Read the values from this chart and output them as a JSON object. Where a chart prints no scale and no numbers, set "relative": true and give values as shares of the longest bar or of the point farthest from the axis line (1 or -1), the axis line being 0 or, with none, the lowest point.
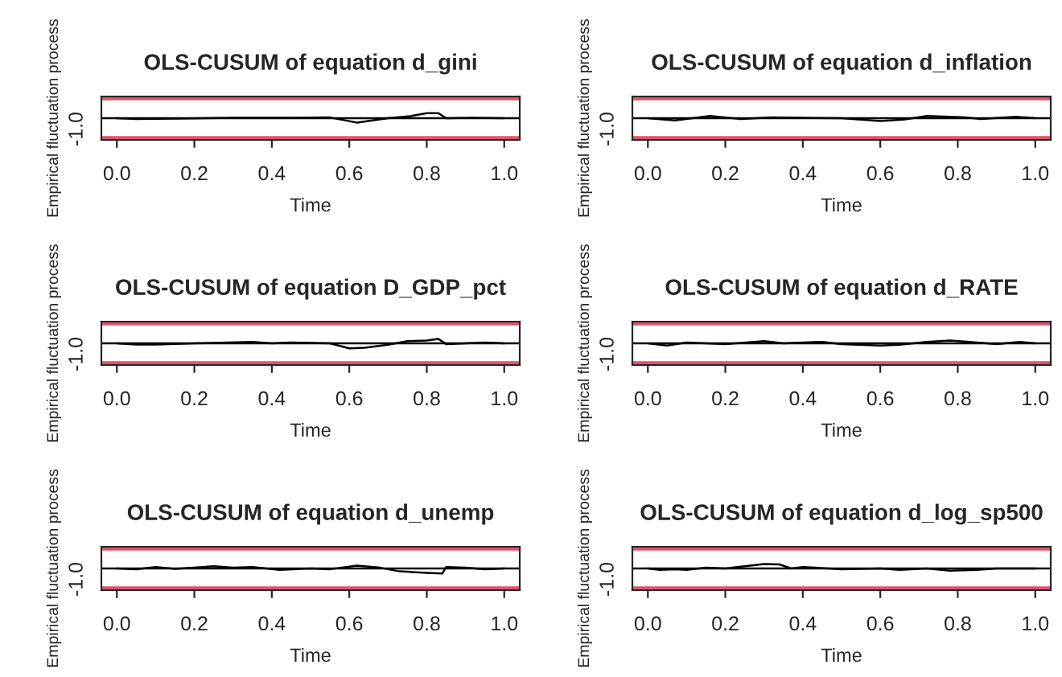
{
  "chart_data": [
    {
      "type": "line",
      "title": "OLS-CUSUM of equation d_gini",
      "xlabel": "Time",
      "ylabel": "Empirical fluctuation process",
      "relative": true,
      "annotations": [
        "-1.0"
      ],
      "xlim": [
        -0.04,
        1.04
      ],
      "xticks": [
        {
          "value": 0,
          "label": "0.0"
        },
        {
          "value": 0.2,
          "label": "0.2"
        },
        {
          "value": 0.4,
          "label": "0.4"
        },
        {
          "value": 0.6,
          "label": "0.6"
        },
        {
          "value": 0.8,
          "label": "0.8"
        },
        {
          "value": 1,
          "label": "1.0"
        }
      ],
      "x": [
        0,
        0.05,
        0.15,
        0.3,
        0.45,
        0.55,
        0.6,
        0.62,
        0.66,
        0.7,
        0.76,
        0.8,
        0.83,
        0.85,
        0.92,
        1.0
      ],
      "series": [
        {
          "color": "#000000",
          "values": [
            0,
            -0.14,
            -0.09,
            0.06,
            0.09,
            0.14,
            -0.57,
            -0.86,
            -0.43,
            0,
            0.43,
            1,
            1,
            0,
            0.06,
            0
          ]
        }
      ],
      "ref_lines": [
        {
          "axis": "y",
          "value": 3.88,
          "color": "#df536b"
        },
        {
          "axis": "y",
          "value": -3.88,
          "color": "#df536b"
        },
        {
          "axis": "y",
          "value": 0,
          "color": "#000000"
        }
      ]
    },
    {
      "type": "line",
      "title": "OLS-CUSUM of equation d_inflation",
      "xlabel": "Time",
      "ylabel": "Empirical fluctuation process",
      "relative": true,
      "annotations": [
        "-1.0"
      ],
      "xlim": [
        -0.04,
        1.04
      ],
      "xticks": [
        {
          "value": 0,
          "label": "0.0"
        },
        {
          "value": 0.2,
          "label": "0.2"
        },
        {
          "value": 0.4,
          "label": "0.4"
        },
        {
          "value": 0.6,
          "label": "0.6"
        },
        {
          "value": 0.8,
          "label": "0.8"
        },
        {
          "value": 1,
          "label": "1.0"
        }
      ],
      "x": [
        0,
        0.07,
        0.16,
        0.24,
        0.32,
        0.5,
        0.6,
        0.66,
        0.72,
        0.78,
        0.82,
        0.86,
        0.95,
        1.0
      ],
      "series": [
        {
          "color": "#000000",
          "values": [
            0,
            -0.75,
            0.75,
            -0.25,
            0.25,
            0,
            -1,
            -0.5,
            0.75,
            0.5,
            0.25,
            -0.25,
            0.5,
            0
          ]
        }
      ],
      "ref_lines": [
        {
          "axis": "y",
          "value": 6.79,
          "color": "#df536b"
        },
        {
          "axis": "y",
          "value": -6.79,
          "color": "#df536b"
        },
        {
          "axis": "y",
          "value": 0,
          "color": "#000000"
        }
      ]
    },
    {
      "type": "line",
      "title": "OLS-CUSUM of equation D_GDP_pct",
      "xlabel": "Time",
      "ylabel": "Empirical fluctuation process",
      "relative": true,
      "annotations": [
        "-1.0"
      ],
      "xlim": [
        -0.04,
        1.04
      ],
      "xticks": [
        {
          "value": 0,
          "label": "0.0"
        },
        {
          "value": 0.2,
          "label": "0.2"
        },
        {
          "value": 0.4,
          "label": "0.4"
        },
        {
          "value": 0.6,
          "label": "0.6"
        },
        {
          "value": 0.8,
          "label": "0.8"
        },
        {
          "value": 1,
          "label": "1.0"
        }
      ],
      "x": [
        0,
        0.05,
        0.1,
        0.2,
        0.35,
        0.4,
        0.45,
        0.55,
        0.6,
        0.64,
        0.7,
        0.75,
        0.8,
        0.83,
        0.85,
        0.95,
        1.0
      ],
      "series": [
        {
          "color": "#000000",
          "values": [
            0,
            -0.23,
            -0.23,
            0,
            0.29,
            0,
            0.14,
            0,
            -1,
            -0.86,
            -0.29,
            0.43,
            0.57,
            0.86,
            -0.14,
            0.14,
            0
          ]
        }
      ],
      "ref_lines": [
        {
          "axis": "y",
          "value": 3.88,
          "color": "#df536b"
        },
        {
          "axis": "y",
          "value": -3.88,
          "color": "#df536b"
        },
        {
          "axis": "y",
          "value": 0,
          "color": "#000000"
        }
      ]
    },
    {
      "type": "line",
      "title": "OLS-CUSUM of equation d_RATE",
      "xlabel": "Time",
      "ylabel": "Empirical fluctuation process",
      "relative": true,
      "annotations": [
        "-1.0"
      ],
      "xlim": [
        -0.04,
        1.04
      ],
      "xticks": [
        {
          "value": 0,
          "label": "0.0"
        },
        {
          "value": 0.2,
          "label": "0.2"
        },
        {
          "value": 0.4,
          "label": "0.4"
        },
        {
          "value": 0.6,
          "label": "0.6"
        },
        {
          "value": 0.8,
          "label": "0.8"
        },
        {
          "value": 1,
          "label": "1.0"
        }
      ],
      "x": [
        0,
        0.05,
        0.1,
        0.2,
        0.3,
        0.35,
        0.45,
        0.5,
        0.6,
        0.65,
        0.72,
        0.78,
        0.83,
        0.9,
        0.96,
        1.0
      ],
      "series": [
        {
          "color": "#000000",
          "values": [
            0,
            -0.75,
            0.25,
            -0.25,
            0.75,
            0,
            0.5,
            -0.25,
            -0.75,
            -0.5,
            0.5,
            1,
            0.5,
            -0.25,
            0.5,
            0
          ]
        }
      ],
      "ref_lines": [
        {
          "axis": "y",
          "value": 6.79,
          "color": "#df536b"
        },
        {
          "axis": "y",
          "value": -6.79,
          "color": "#df536b"
        },
        {
          "axis": "y",
          "value": 0,
          "color": "#000000"
        }
      ]
    },
    {
      "type": "line",
      "title": "OLS-CUSUM of equation d_unemp",
      "xlabel": "Time",
      "ylabel": "Empirical fluctuation process",
      "relative": true,
      "annotations": [
        "-1.0"
      ],
      "xlim": [
        -0.04,
        1.04
      ],
      "xticks": [
        {
          "value": 0,
          "label": "0.0"
        },
        {
          "value": 0.2,
          "label": "0.2"
        },
        {
          "value": 0.4,
          "label": "0.4"
        },
        {
          "value": 0.6,
          "label": "0.6"
        },
        {
          "value": 0.8,
          "label": "0.8"
        },
        {
          "value": 1,
          "label": "1.0"
        }
      ],
      "x": [
        0,
        0.05,
        0.1,
        0.15,
        0.25,
        0.3,
        0.35,
        0.42,
        0.5,
        0.55,
        0.62,
        0.68,
        0.73,
        0.8,
        0.84,
        0.85,
        0.9,
        0.95,
        1.0
      ],
      "series": [
        {
          "color": "#000000",
          "values": [
            0,
            -0.14,
            0.29,
            -0.09,
            0.43,
            0.14,
            0.29,
            -0.29,
            0,
            -0.14,
            0.57,
            0.14,
            -0.57,
            -0.86,
            -1,
            0.29,
            0.14,
            -0.14,
            0
          ]
        }
      ],
      "ref_lines": [
        {
          "axis": "y",
          "value": 3.88,
          "color": "#df536b"
        },
        {
          "axis": "y",
          "value": -3.88,
          "color": "#df536b"
        },
        {
          "axis": "y",
          "value": 0,
          "color": "#000000"
        }
      ]
    },
    {
      "type": "line",
      "title": "OLS-CUSUM of equation d_log_sp500",
      "xlabel": "Time",
      "ylabel": "Empirical fluctuation process",
      "relative": true,
      "annotations": [
        "-1.0"
      ],
      "xlim": [
        -0.04,
        1.04
      ],
      "xticks": [
        {
          "value": 0,
          "label": "0.0"
        },
        {
          "value": 0.2,
          "label": "0.2"
        },
        {
          "value": 0.4,
          "label": "0.4"
        },
        {
          "value": 0.6,
          "label": "0.6"
        },
        {
          "value": 0.8,
          "label": "0.8"
        },
        {
          "value": 1,
          "label": "1.0"
        }
      ],
      "x": [
        0,
        0.03,
        0.07,
        0.1,
        0.15,
        0.2,
        0.3,
        0.34,
        0.37,
        0.4,
        0.5,
        0.6,
        0.65,
        0.72,
        0.78,
        0.85,
        0.9,
        1.0
      ],
      "series": [
        {
          "color": "#000000",
          "values": [
            0,
            -0.33,
            -0.17,
            -0.33,
            0.17,
            0,
            1,
            0.93,
            0,
            0.33,
            -0.17,
            0,
            -0.33,
            0,
            -0.5,
            -0.33,
            0,
            0
          ]
        }
      ],
      "ref_lines": [
        {
          "axis": "y",
          "value": 4.53,
          "color": "#df536b"
        },
        {
          "axis": "y",
          "value": -4.53,
          "color": "#df536b"
        },
        {
          "axis": "y",
          "value": 0,
          "color": "#000000"
        }
      ]
    }
  ]
}
